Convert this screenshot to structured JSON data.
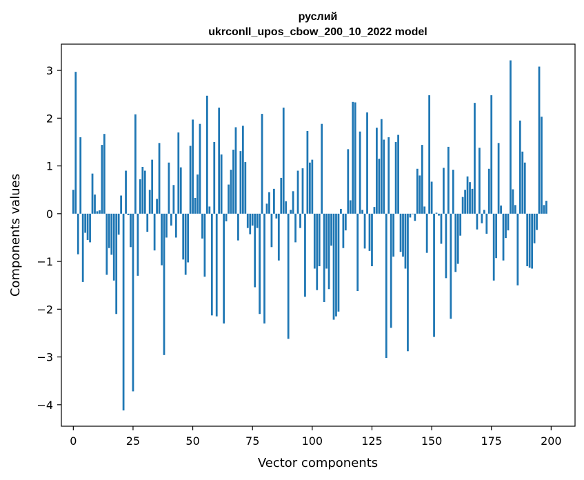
{
  "chart_data": {
    "type": "bar",
    "title": "руслий",
    "subtitle": "ukrconll_upos_cbow_200_10_2022 model",
    "xlabel": "Vector components",
    "ylabel": "Components values",
    "xlim": [
      -5,
      210
    ],
    "ylim": [
      -4.45,
      3.55
    ],
    "xticks": [
      0,
      25,
      50,
      75,
      100,
      125,
      150,
      175,
      200
    ],
    "yticks": [
      -4,
      -3,
      -2,
      -1,
      0,
      1,
      2,
      3
    ],
    "ytick_labels": [
      "−4",
      "−3",
      "−2",
      "−1",
      "0",
      "1",
      "2",
      "3"
    ],
    "grid": false,
    "bar_color": "#1f77b4",
    "x_start": 0,
    "values": [
      0.5,
      2.97,
      -0.85,
      1.6,
      -1.43,
      -0.4,
      -0.55,
      -0.6,
      0.84,
      0.4,
      0.05,
      0.07,
      1.44,
      1.67,
      -1.28,
      -0.72,
      -0.86,
      -1.4,
      -2.1,
      -0.44,
      0.38,
      -4.12,
      0.9,
      -0.03,
      -0.7,
      -3.72,
      2.08,
      -1.3,
      0.72,
      0.98,
      0.9,
      -0.38,
      0.5,
      1.13,
      -0.77,
      0.31,
      1.48,
      -1.08,
      -2.96,
      -0.5,
      1.07,
      -0.25,
      0.6,
      -0.5,
      1.7,
      0.97,
      -0.96,
      -1.28,
      -1.02,
      1.42,
      1.97,
      0.33,
      0.82,
      1.88,
      -0.52,
      -1.32,
      2.47,
      0.15,
      -2.13,
      1.5,
      -2.15,
      2.22,
      1.24,
      -2.3,
      -0.16,
      0.61,
      0.92,
      1.34,
      1.81,
      -0.56,
      1.31,
      1.84,
      1.08,
      -0.3,
      -0.43,
      -0.25,
      -1.54,
      -0.3,
      -2.1,
      2.09,
      -2.3,
      0.21,
      0.45,
      -0.7,
      0.52,
      -0.1,
      -0.98,
      0.75,
      2.22,
      0.26,
      -2.62,
      0.08,
      0.47,
      -0.6,
      0.9,
      -0.3,
      0.95,
      -1.74,
      1.73,
      1.07,
      1.13,
      -1.15,
      -1.6,
      -1.1,
      1.88,
      -1.85,
      -1.15,
      -1.58,
      -0.67,
      -2.22,
      -2.15,
      -2.05,
      0.1,
      -0.72,
      -0.35,
      1.35,
      0.28,
      2.34,
      2.33,
      -1.62,
      1.72,
      0.08,
      -0.73,
      2.12,
      -0.78,
      -1.1,
      0.14,
      1.8,
      1.15,
      1.98,
      1.55,
      -3.02,
      1.6,
      -2.39,
      -0.9,
      1.5,
      1.65,
      -0.8,
      -0.9,
      -1.15,
      -2.88,
      -0.08,
      0.0,
      -0.15,
      0.94,
      0.8,
      1.44,
      0.15,
      -0.82,
      2.48,
      0.67,
      -2.58,
      0.02,
      -0.04,
      -0.63,
      0.96,
      -1.35,
      1.4,
      -2.2,
      0.92,
      -1.22,
      -1.05,
      -0.46,
      0.35,
      0.5,
      0.78,
      0.66,
      0.52,
      2.32,
      -0.33,
      1.38,
      -0.2,
      0.08,
      -0.42,
      0.94,
      2.48,
      -1.4,
      -0.93,
      1.48,
      0.17,
      -0.98,
      -0.51,
      -0.35,
      3.21,
      0.51,
      0.18,
      -1.5,
      1.95,
      1.3,
      1.07,
      -1.1,
      -1.13,
      -1.15,
      -0.62,
      -0.34,
      3.08,
      2.03,
      0.18,
      0.27
    ]
  }
}
